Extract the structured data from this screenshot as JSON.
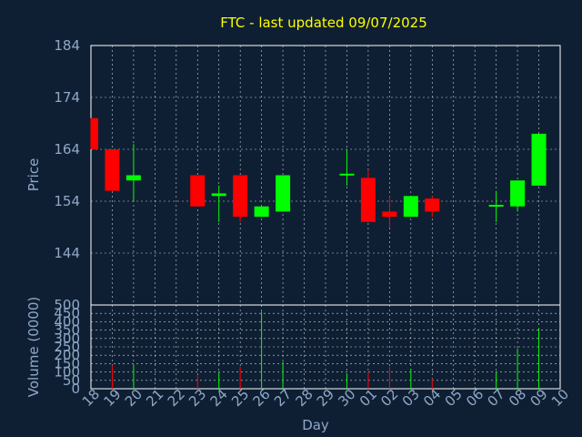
{
  "chart_data": {
    "type": "candlestick",
    "title": "FTC - last updated 09/07/2025",
    "xlabel": "Day",
    "price_panel": {
      "ylabel": "Price",
      "ylim": [
        134,
        184
      ],
      "yticks": [
        184,
        174,
        164,
        154,
        144
      ]
    },
    "volume_panel": {
      "ylabel": "Volume (0000)",
      "ylim": [
        0,
        500
      ],
      "yticks": [
        500,
        450,
        400,
        350,
        300,
        250,
        200,
        150,
        100,
        50,
        0
      ]
    },
    "x_tick_labels": [
      "18",
      "19",
      "20",
      "21",
      "22",
      "23",
      "24",
      "25",
      "26",
      "27",
      "28",
      "29",
      "30",
      "01",
      "02",
      "03",
      "04",
      "05",
      "06",
      "07",
      "08",
      "09",
      "10"
    ],
    "colors": {
      "up": "#00ff00",
      "down": "#ff0000",
      "title": "#ffff00",
      "axis_text": "#8fa8c8"
    },
    "candles": [
      {
        "day": "18",
        "open": 170,
        "high": 170,
        "low": 164,
        "close": 164,
        "volume": 0
      },
      {
        "day": "19",
        "open": 164,
        "high": 164,
        "low": 156,
        "close": 156,
        "volume": 140
      },
      {
        "day": "20",
        "open": 158,
        "high": 165,
        "low": 154,
        "close": 159,
        "volume": 140
      },
      {
        "day": "23",
        "open": 159,
        "high": 159,
        "low": 153,
        "close": 153,
        "volume": 80
      },
      {
        "day": "24",
        "open": 155,
        "high": 157,
        "low": 150,
        "close": 155.5,
        "volume": 100
      },
      {
        "day": "25",
        "open": 159,
        "high": 159,
        "low": 150,
        "close": 151,
        "volume": 130
      },
      {
        "day": "26",
        "open": 151,
        "high": 153,
        "low": 151,
        "close": 153,
        "volume": 460
      },
      {
        "day": "27",
        "open": 152,
        "high": 159,
        "low": 152,
        "close": 159,
        "volume": 160
      },
      {
        "day": "30",
        "open": 159,
        "high": 164,
        "low": 157,
        "close": 159.3,
        "volume": 90
      },
      {
        "day": "01",
        "open": 158.5,
        "high": 160,
        "low": 150,
        "close": 150,
        "volume": 100
      },
      {
        "day": "02",
        "open": 152,
        "high": 155,
        "low": 149,
        "close": 151,
        "volume": 130
      },
      {
        "day": "03",
        "open": 151,
        "high": 155,
        "low": 151,
        "close": 155,
        "volume": 120
      },
      {
        "day": "04",
        "open": 154.5,
        "high": 155,
        "low": 151,
        "close": 152,
        "volume": 60
      },
      {
        "day": "07",
        "open": 153,
        "high": 156,
        "low": 150,
        "close": 153.3,
        "volume": 100
      },
      {
        "day": "08",
        "open": 153,
        "high": 158,
        "low": 152,
        "close": 158,
        "volume": 240
      },
      {
        "day": "09",
        "open": 157,
        "high": 167,
        "low": 157,
        "close": 167,
        "volume": 360
      }
    ]
  }
}
